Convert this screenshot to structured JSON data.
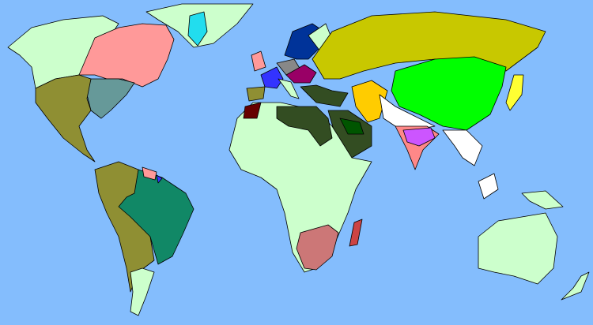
{
  "map": {
    "colors": {
      "ocean": "#84bdfd",
      "unclaimed_land": "#ccffcc",
      "uncolonized": "#ffffff",
      "olive_realm": "#8f8f33",
      "russia_yellow": "#c8c800",
      "china_green": "#00ff00",
      "british_pink": "#ff9999",
      "us_teal": "#669999",
      "brazil_green": "#118866",
      "ottoman_dark": "#334d22",
      "persia_orange": "#ffcc00",
      "india_purple": "#cc55ff",
      "india_salmon": "#ff8888",
      "southafrica_rose": "#cc7777",
      "madagascar_red": "#cc4444",
      "spain_blue": "#3333ff",
      "austria_purple": "#990066",
      "morocco_maroon": "#660000",
      "sweden_navy": "#003399",
      "greenland_cyan": "#22ddee",
      "arabia_darkgreen": "#005500",
      "japan_yellow": "#ffff33"
    }
  }
}
